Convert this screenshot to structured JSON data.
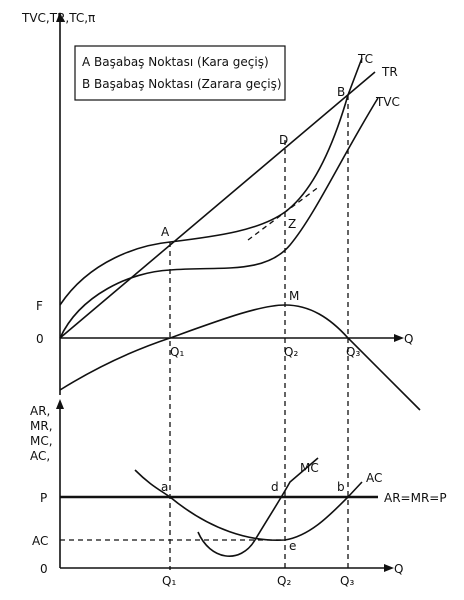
{
  "top_axis_label": "TVC,TR,TC,π",
  "legend": [
    "A Başabaş Noktası (Kara geçiş)",
    "B Başabaş Noktası (Zarara geçiş)"
  ],
  "top_curves": {
    "tc": "TC",
    "tr": "TR",
    "tvc": "TVC"
  },
  "top_points": {
    "a": "A",
    "b": "B",
    "d": "D",
    "z": "Z",
    "m": "M",
    "f": "F",
    "origin": "0"
  },
  "top_x_axis": "Q",
  "top_q_labels": [
    "Q₁",
    "Q₂",
    "Q₃"
  ],
  "bottom_axis_label": [
    "AR,",
    "MR,",
    "MC,",
    "AC,"
  ],
  "bottom_y_labels": {
    "p": "P",
    "ac": "AC",
    "origin": "0"
  },
  "bottom_points": {
    "a": "a",
    "d": "d",
    "b": "b",
    "e": "e"
  },
  "bottom_curves": {
    "mc": "MC",
    "ac": "AC",
    "ar": "AR=MR=P"
  },
  "bottom_x_axis": "Q",
  "bottom_q_labels": [
    "Q₁",
    "Q₂",
    "Q₃"
  ]
}
